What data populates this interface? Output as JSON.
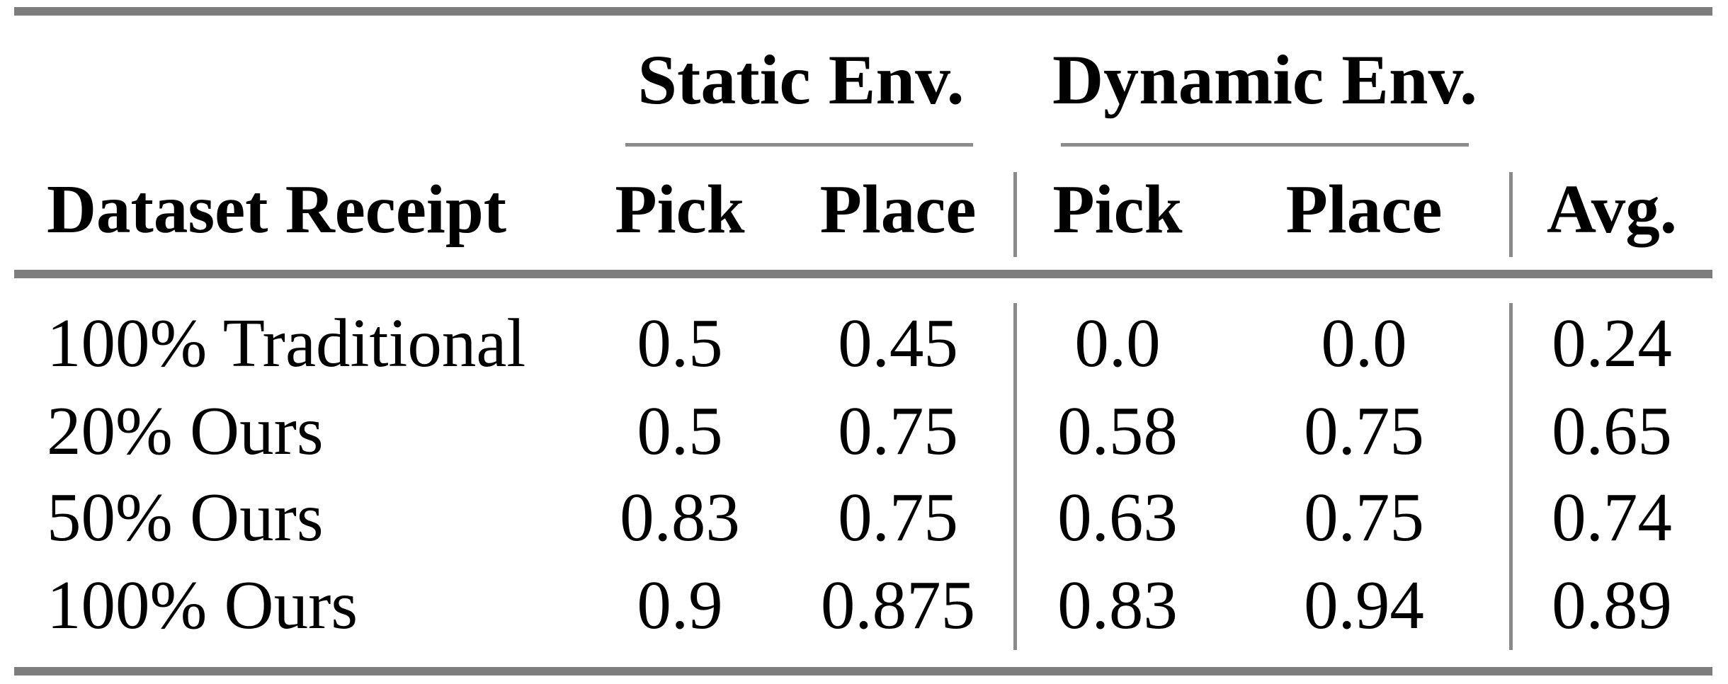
{
  "table": {
    "group_headers": [
      {
        "label": "Static Env."
      },
      {
        "label": "Dynamic Env."
      }
    ],
    "column_headers": {
      "row_label": "Dataset Receipt",
      "static_pick": "Pick",
      "static_place": "Place",
      "dynamic_pick": "Pick",
      "dynamic_place": "Place",
      "avg": "Avg."
    },
    "rows": [
      {
        "label": "100% Traditional",
        "values": [
          "0.5",
          "0.45",
          "0.0",
          "0.0",
          "0.24"
        ]
      },
      {
        "label": "20% Ours",
        "values": [
          "0.5",
          "0.75",
          "0.58",
          "0.75",
          "0.65"
        ]
      },
      {
        "label": "50% Ours",
        "values": [
          "0.83",
          "0.75",
          "0.63",
          "0.75",
          "0.74"
        ]
      },
      {
        "label": "100% Ours",
        "values": [
          "0.9",
          "0.875",
          "0.83",
          "0.94",
          "0.89"
        ]
      }
    ],
    "colors": {
      "heavy_rule": "#7d7d7d",
      "light_rule": "#8c8c8c",
      "separator": "#8a8a8a",
      "text": "#000000",
      "background": "#ffffff"
    }
  }
}
